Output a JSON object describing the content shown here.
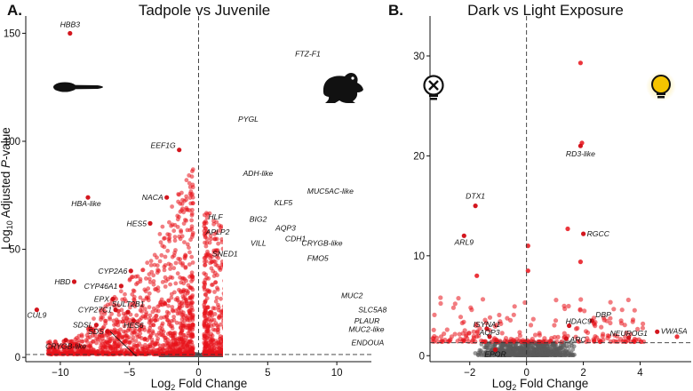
{
  "chart_data": [
    {
      "type": "scatter",
      "panel_label": "A.",
      "title": "Tadpole vs Juvenile",
      "xlabel_base": "Log",
      "xlabel_sub": "2",
      "xlabel_rest": " Fold Change",
      "ylabel_base": "Log",
      "ylabel_sub": "10",
      "ylabel_rest": " Adjusted ",
      "ylabel_italic": "P",
      "ylabel_end": "-value",
      "xlim": [
        -12.5,
        12.5
      ],
      "ylim": [
        -2,
        158
      ],
      "xticks": [
        -10,
        -5,
        0,
        5,
        10
      ],
      "yticks": [
        0,
        50,
        100,
        150
      ],
      "significance_threshold": 1.3,
      "icons": [
        "tadpole-silhouette",
        "frog-silhouette"
      ],
      "labeled_genes": [
        {
          "name": "HBB3",
          "x": -9.3,
          "y": 150
        },
        {
          "name": "FTZ-F1",
          "x": 7.9,
          "y": 136
        },
        {
          "name": "PYGL",
          "x": 3.6,
          "y": 114
        },
        {
          "name": "EEF1G",
          "x": -1.4,
          "y": 96
        },
        {
          "name": "ADH-like",
          "x": 4.3,
          "y": 81
        },
        {
          "name": "MUC5AC-like",
          "x": 7.6,
          "y": 77
        },
        {
          "name": "NACA",
          "x": -2.3,
          "y": 74
        },
        {
          "name": "HBA-like",
          "x": -8.0,
          "y": 74
        },
        {
          "name": "KLF5",
          "x": 5.6,
          "y": 68
        },
        {
          "name": "HLF",
          "x": 2.0,
          "y": 65
        },
        {
          "name": "BIG2",
          "x": 5.2,
          "y": 64
        },
        {
          "name": "HES5",
          "x": -3.5,
          "y": 62
        },
        {
          "name": "AQP3",
          "x": 5.3,
          "y": 60
        },
        {
          "name": "APLP2",
          "x": 2.5,
          "y": 58
        },
        {
          "name": "CDH1",
          "x": 6.0,
          "y": 55
        },
        {
          "name": "VILL",
          "x": 3.5,
          "y": 53
        },
        {
          "name": "CRYGB-like",
          "x": 7.2,
          "y": 53
        },
        {
          "name": "SNED1",
          "x": 3.1,
          "y": 48
        },
        {
          "name": "FMO5",
          "x": 7.6,
          "y": 46
        },
        {
          "name": "CYP2A6",
          "x": -4.9,
          "y": 40
        },
        {
          "name": "CYP46A1",
          "x": -5.6,
          "y": 33
        },
        {
          "name": "EPX",
          "x": -6.2,
          "y": 27
        },
        {
          "name": "HBD",
          "x": -9.0,
          "y": 35
        },
        {
          "name": "MUC2",
          "x": 11.1,
          "y": 25
        },
        {
          "name": "SLC5A8",
          "x": 11.3,
          "y": 22
        },
        {
          "name": "CYP27C1",
          "x": -6.0,
          "y": 22
        },
        {
          "name": "SULT2B1",
          "x": -5.1,
          "y": 21
        },
        {
          "name": "CUL9",
          "x": -11.7,
          "y": 22
        },
        {
          "name": "HES6",
          "x": -4.7,
          "y": 17
        },
        {
          "name": "PLAUR",
          "x": 11.0,
          "y": 17
        },
        {
          "name": "SDSL",
          "x": -7.4,
          "y": 15
        },
        {
          "name": "SDS",
          "x": -6.6,
          "y": 12
        },
        {
          "name": "MUC2-like",
          "x": 10.6,
          "y": 13
        },
        {
          "name": "ENDOUA",
          "x": 10.8,
          "y": 8
        },
        {
          "name": "CRYGB-like",
          "x": -9.6,
          "y": 8
        }
      ]
    },
    {
      "type": "scatter",
      "panel_label": "B.",
      "title": "Dark vs Light Exposure",
      "xlabel_base": "Log",
      "xlabel_sub": "2",
      "xlabel_rest": " Fold Change",
      "xlim": [
        -3.4,
        5.8
      ],
      "ylim": [
        -0.6,
        34
      ],
      "xticks": [
        -2,
        0,
        2,
        4
      ],
      "yticks": [
        0,
        10,
        20,
        30
      ],
      "significance_threshold": 1.3,
      "icons": [
        "light-off-bulb",
        "light-on-bulb"
      ],
      "labeled_genes": [
        {
          "name": "RD3-like",
          "x": 1.9,
          "y": 21
        },
        {
          "name": "DTX1",
          "x": -1.8,
          "y": 15
        },
        {
          "name": "RGCC",
          "x": 2.0,
          "y": 12.2
        },
        {
          "name": "ARL9",
          "x": -2.2,
          "y": 12
        },
        {
          "name": "DBP",
          "x": 2.3,
          "y": 3.5
        },
        {
          "name": "HDAC9",
          "x": 1.5,
          "y": 3.0
        },
        {
          "name": "ISYNA1",
          "x": -1.4,
          "y": 2.7
        },
        {
          "name": "VWA5A",
          "x": 4.6,
          "y": 2.4
        },
        {
          "name": "AQP3",
          "x": -1.3,
          "y": 1.9
        },
        {
          "name": "ARC",
          "x": 1.4,
          "y": 1.7
        },
        {
          "name": "NEUROG1",
          "x": 3.6,
          "y": 1.8
        },
        {
          "name": "EPOR",
          "x": -1.1,
          "y": 0.6
        }
      ]
    }
  ],
  "colors": {
    "significant": "#e8121a",
    "nonsignificant": "#5a5a5a",
    "axis": "#111111",
    "bulb_on": "#f5c400",
    "bulb_glow": "#fbe27a"
  }
}
